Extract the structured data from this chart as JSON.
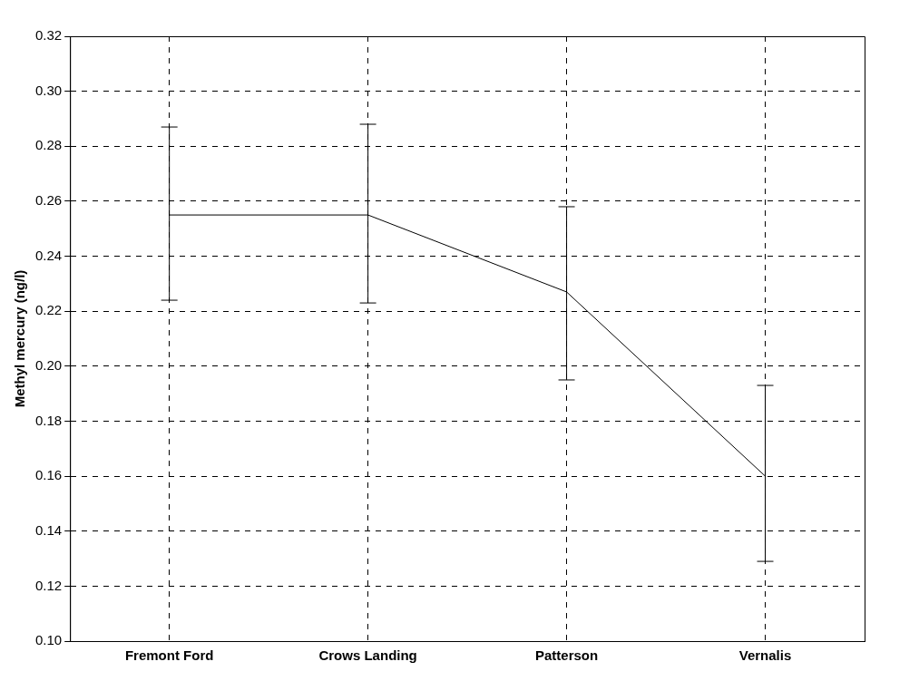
{
  "chart_data": {
    "type": "line",
    "ylabel": "Methyl mercury (ng/l)",
    "categories": [
      "Fremont Ford",
      "Crows Landing",
      "Patterson",
      "Vernalis"
    ],
    "series": [
      {
        "color": "#000000",
        "values": [
          0.255,
          0.255,
          0.227,
          0.16
        ],
        "errors": [
          [
            0.224,
            0.287
          ],
          [
            0.223,
            0.288
          ],
          [
            0.195,
            0.258
          ],
          [
            0.129,
            0.193
          ]
        ]
      }
    ],
    "ylim": [
      0.1,
      0.32
    ],
    "yticks": [
      {
        "value": 0.1,
        "label": "0.10"
      },
      {
        "value": 0.12,
        "label": "0.12"
      },
      {
        "value": 0.14,
        "label": "0.14"
      },
      {
        "value": 0.16,
        "label": "0.16"
      },
      {
        "value": 0.18,
        "label": "0.18"
      },
      {
        "value": 0.2,
        "label": "0.20"
      },
      {
        "value": 0.22,
        "label": "0.22"
      },
      {
        "value": 0.24,
        "label": "0.24"
      },
      {
        "value": 0.26,
        "label": "0.26"
      },
      {
        "value": 0.28,
        "label": "0.28"
      },
      {
        "value": 0.3,
        "label": "0.30"
      },
      {
        "value": 0.32,
        "label": "0.32"
      }
    ],
    "grid": true,
    "legend": false,
    "marker": "none",
    "line_style": "solid"
  }
}
